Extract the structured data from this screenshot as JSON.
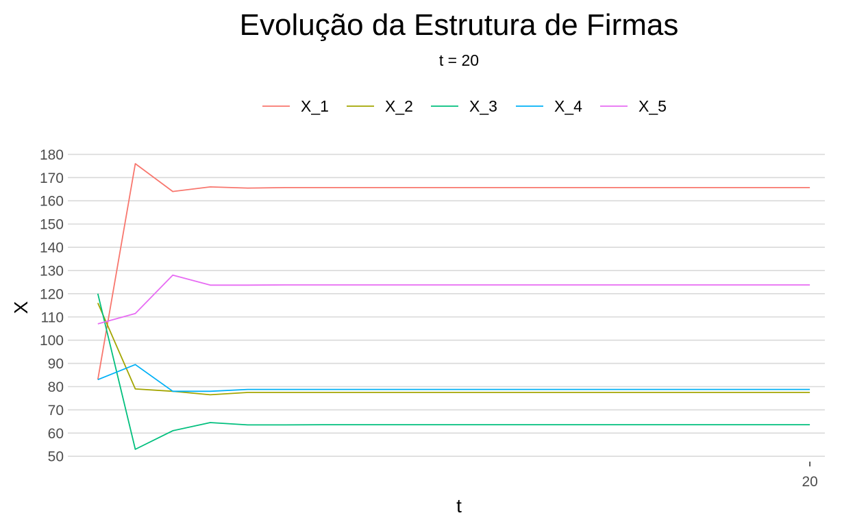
{
  "chart_data": {
    "type": "line",
    "title": "Evolução da Estrutura de Firmas",
    "subtitle": "t = 20",
    "xlabel": "t",
    "ylabel": "X",
    "x": [
      1,
      2,
      3,
      4,
      5,
      6,
      7,
      8,
      9,
      10,
      11,
      12,
      13,
      14,
      15,
      16,
      17,
      18,
      19,
      20
    ],
    "xlim": [
      0.2,
      20.4
    ],
    "x_ticks": [
      20
    ],
    "ylim": [
      48,
      181
    ],
    "y_ticks": [
      50,
      60,
      70,
      80,
      90,
      100,
      110,
      120,
      130,
      140,
      150,
      160,
      170,
      180
    ],
    "grid": true,
    "legend_position": "top",
    "series": [
      {
        "name": "X_1",
        "color": "#F8766D",
        "values": [
          83,
          176,
          164,
          166,
          165.5,
          165.7,
          165.7,
          165.7,
          165.7,
          165.7,
          165.7,
          165.7,
          165.7,
          165.7,
          165.7,
          165.7,
          165.7,
          165.7,
          165.7,
          165.7
        ]
      },
      {
        "name": "X_2",
        "color": "#A3A500",
        "values": [
          116,
          79,
          78,
          76.5,
          77.5,
          77.5,
          77.5,
          77.5,
          77.5,
          77.5,
          77.5,
          77.5,
          77.5,
          77.5,
          77.5,
          77.5,
          77.5,
          77.5,
          77.5,
          77.5
        ]
      },
      {
        "name": "X_3",
        "color": "#00BF7D",
        "values": [
          120,
          53,
          61,
          64.5,
          63.5,
          63.5,
          63.6,
          63.6,
          63.6,
          63.6,
          63.6,
          63.6,
          63.6,
          63.6,
          63.6,
          63.6,
          63.6,
          63.6,
          63.6,
          63.6
        ]
      },
      {
        "name": "X_4",
        "color": "#00B0F6",
        "values": [
          83,
          89.5,
          78,
          78,
          78.8,
          78.8,
          78.8,
          78.8,
          78.8,
          78.8,
          78.8,
          78.8,
          78.8,
          78.8,
          78.8,
          78.8,
          78.8,
          78.8,
          78.8,
          78.8
        ]
      },
      {
        "name": "X_5",
        "color": "#E76BF3",
        "values": [
          107,
          111.5,
          128,
          123.7,
          123.7,
          123.8,
          123.8,
          123.8,
          123.8,
          123.8,
          123.8,
          123.8,
          123.8,
          123.8,
          123.8,
          123.8,
          123.8,
          123.8,
          123.8,
          123.8
        ]
      }
    ]
  }
}
